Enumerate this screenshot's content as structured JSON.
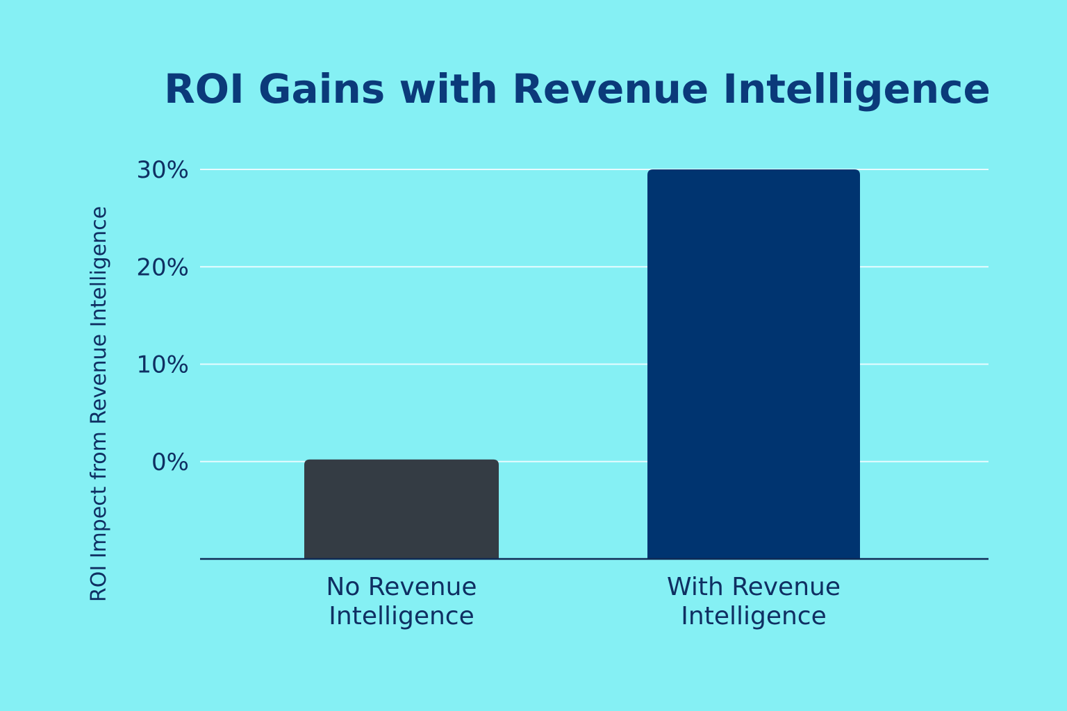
{
  "chart_data": {
    "type": "bar",
    "title": "ROI Gains with Revenue Intelligence",
    "xlabel": "",
    "ylabel": "ROI Impect from Revenue Intelligence",
    "categories": [
      [
        "No Revenue",
        "Intelligence"
      ],
      [
        "With Revenue",
        "Intelligence"
      ]
    ],
    "values": [
      0,
      30
    ],
    "ylim": [
      -10,
      30
    ],
    "yticks": [
      0,
      10,
      20,
      30
    ],
    "ytick_labels": [
      "0%",
      "10%",
      "20%",
      "30%"
    ],
    "grid": true,
    "legend": "none",
    "colors": {
      "background": "#85f0f4",
      "title": "#0b3a7a",
      "text": "#0f2f62",
      "grid": "#e8fcff",
      "axis": "#0f2a55",
      "bars": [
        "#343c44",
        "#003470"
      ]
    }
  }
}
